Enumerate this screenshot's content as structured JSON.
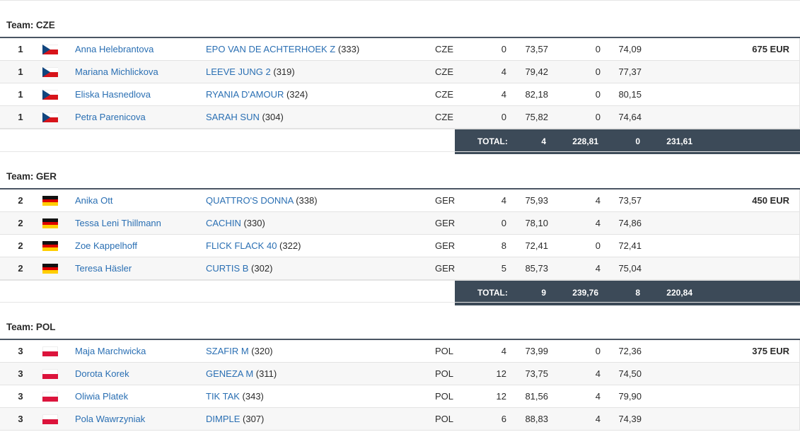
{
  "teams": [
    {
      "label": "Team: CZE",
      "flag": "flag-czech-republic-icon",
      "rows": [
        {
          "rank": "1",
          "rider": "Anna Helebrantova",
          "horse": "EPO VAN DE ACHTERHOEK Z",
          "horse_no": " (333)",
          "nat": "CZE",
          "p1": "0",
          "t1": "73,57",
          "p2": "0",
          "t2": "74,09",
          "prize": "675 EUR"
        },
        {
          "rank": "1",
          "rider": "Mariana Michlickova",
          "horse": "LEEVE JUNG 2",
          "horse_no": " (319)",
          "nat": "CZE",
          "p1": "4",
          "t1": "79,42",
          "p2": "0",
          "t2": "77,37",
          "prize": ""
        },
        {
          "rank": "1",
          "rider": "Eliska Hasnedlova",
          "horse": "RYANIA D'AMOUR",
          "horse_no": " (324)",
          "nat": "CZE",
          "p1": "4",
          "t1": "82,18",
          "p2": "0",
          "t2": "80,15",
          "prize": ""
        },
        {
          "rank": "1",
          "rider": "Petra Parenicova",
          "horse": "SARAH SUN",
          "horse_no": " (304)",
          "nat": "CZE",
          "p1": "0",
          "t1": "75,82",
          "p2": "0",
          "t2": "74,64",
          "prize": ""
        }
      ],
      "total": {
        "label": "TOTAL:",
        "p1": "4",
        "t1": "228,81",
        "p2": "0",
        "t2": "231,61"
      }
    },
    {
      "label": "Team: GER",
      "flag": "flag-germany-icon",
      "rows": [
        {
          "rank": "2",
          "rider": "Anika Ott",
          "horse": "QUATTRO'S DONNA",
          "horse_no": " (338)",
          "nat": "GER",
          "p1": "4",
          "t1": "75,93",
          "p2": "4",
          "t2": "73,57",
          "prize": "450 EUR"
        },
        {
          "rank": "2",
          "rider": "Tessa Leni Thillmann",
          "horse": "CACHIN",
          "horse_no": " (330)",
          "nat": "GER",
          "p1": "0",
          "t1": "78,10",
          "p2": "4",
          "t2": "74,86",
          "prize": ""
        },
        {
          "rank": "2",
          "rider": "Zoe Kappelhoff",
          "horse": "FLICK FLACK 40",
          "horse_no": " (322)",
          "nat": "GER",
          "p1": "8",
          "t1": "72,41",
          "p2": "0",
          "t2": "72,41",
          "prize": ""
        },
        {
          "rank": "2",
          "rider": "Teresa Häsler",
          "horse": "CURTIS B",
          "horse_no": " (302)",
          "nat": "GER",
          "p1": "5",
          "t1": "85,73",
          "p2": "4",
          "t2": "75,04",
          "prize": ""
        }
      ],
      "total": {
        "label": "TOTAL:",
        "p1": "9",
        "t1": "239,76",
        "p2": "8",
        "t2": "220,84"
      }
    },
    {
      "label": "Team: POL",
      "flag": "flag-poland-icon",
      "rows": [
        {
          "rank": "3",
          "rider": "Maja Marchwicka",
          "horse": "SZAFIR M",
          "horse_no": " (320)",
          "nat": "POL",
          "p1": "4",
          "t1": "73,99",
          "p2": "0",
          "t2": "72,36",
          "prize": "375 EUR"
        },
        {
          "rank": "3",
          "rider": "Dorota Korek",
          "horse": "GENEZA M",
          "horse_no": " (311)",
          "nat": "POL",
          "p1": "12",
          "t1": "73,75",
          "p2": "4",
          "t2": "74,50",
          "prize": ""
        },
        {
          "rank": "3",
          "rider": "Oliwia Platek",
          "horse": "TIK TAK",
          "horse_no": " (343)",
          "nat": "POL",
          "p1": "12",
          "t1": "81,56",
          "p2": "4",
          "t2": "79,90",
          "prize": ""
        },
        {
          "rank": "3",
          "rider": "Pola Wawrzyniak",
          "horse": "DIMPLE",
          "horse_no": " (307)",
          "nat": "POL",
          "p1": "6",
          "t1": "88,83",
          "p2": "4",
          "t2": "74,39",
          "prize": ""
        }
      ]
    }
  ]
}
